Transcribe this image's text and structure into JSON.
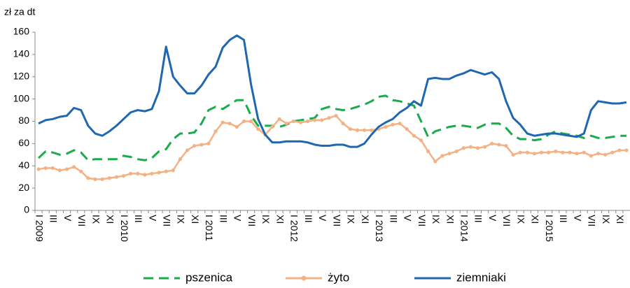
{
  "chart_data": {
    "type": "line",
    "ylabel": "zł za dt",
    "categories": [
      "I 2009",
      null,
      "III",
      null,
      "V",
      null,
      "VII",
      null,
      "IX",
      null,
      "XI",
      null,
      "I 2010",
      null,
      "III",
      null,
      "V",
      null,
      "VII",
      null,
      "IX",
      null,
      "XI",
      null,
      "I 2011",
      null,
      "III",
      null,
      "V",
      null,
      "VII",
      null,
      "IX",
      null,
      "XI",
      null,
      "I 2012",
      null,
      "III",
      null,
      "V",
      null,
      "VII",
      null,
      "IX",
      null,
      "XI",
      null,
      "I 2013",
      null,
      "III",
      null,
      "V",
      null,
      "VII",
      null,
      "IX",
      null,
      "XI",
      null,
      "I 2014",
      null,
      "III",
      null,
      "V",
      null,
      "VII",
      null,
      "IX",
      null,
      "XI",
      null,
      "I 2015",
      null,
      "III",
      null,
      "V",
      null,
      "VII",
      null,
      "IX",
      null,
      "XI",
      null
    ],
    "series": [
      {
        "name": "pszenica",
        "color": "#1aab4b",
        "style": "dashed",
        "values": [
          47,
          53,
          52,
          50,
          51,
          54,
          52,
          45,
          46,
          46,
          46,
          46,
          49,
          48,
          46,
          45,
          47,
          53,
          55,
          64,
          69,
          69,
          70,
          78,
          90,
          93,
          91,
          95,
          99,
          99,
          85,
          76,
          76,
          76,
          75,
          77,
          80,
          81,
          82,
          83,
          91,
          93,
          91,
          90,
          91,
          93,
          95,
          98,
          102,
          103,
          99,
          98,
          96,
          94,
          80,
          66,
          71,
          73,
          75,
          76,
          76,
          75,
          74,
          77,
          78,
          78,
          74,
          67,
          64,
          64,
          63,
          64,
          68,
          71,
          69,
          68,
          67,
          65,
          67,
          65,
          65,
          66,
          67,
          67
        ]
      },
      {
        "name": "żyto",
        "color": "#f4b183",
        "style": "markers",
        "values": [
          37,
          38,
          38,
          36,
          37,
          39,
          35,
          29,
          28,
          28,
          29,
          30,
          31,
          33,
          33,
          32,
          33,
          34,
          35,
          36,
          46,
          54,
          58,
          59,
          60,
          71,
          79,
          78,
          75,
          80,
          80,
          73,
          68,
          75,
          82,
          78,
          80,
          79,
          80,
          81,
          81,
          83,
          85,
          78,
          73,
          72,
          72,
          72,
          73,
          75,
          77,
          78,
          73,
          67,
          63,
          53,
          44,
          49,
          51,
          53,
          56,
          57,
          56,
          57,
          60,
          59,
          58,
          50,
          52,
          52,
          51,
          52,
          52,
          53,
          52,
          52,
          51,
          52,
          49,
          51,
          50,
          52,
          54,
          54
        ]
      },
      {
        "name": "ziemniaki",
        "color": "#1f67b1",
        "style": "solid",
        "values": [
          78,
          81,
          82,
          84,
          85,
          92,
          90,
          76,
          69,
          67,
          71,
          76,
          82,
          88,
          90,
          89,
          91,
          107,
          147,
          120,
          112,
          105,
          105,
          112,
          122,
          129,
          146,
          153,
          157,
          153,
          113,
          82,
          68,
          61,
          61,
          62,
          62,
          62,
          61,
          59,
          58,
          58,
          59,
          59,
          57,
          57,
          60,
          68,
          75,
          79,
          82,
          88,
          92,
          98,
          94,
          118,
          119,
          118,
          118,
          121,
          123,
          126,
          124,
          122,
          124,
          118,
          98,
          83,
          77,
          69,
          67,
          68,
          69,
          69,
          68,
          67,
          66,
          69,
          90,
          98,
          97,
          96,
          96,
          97
        ]
      }
    ],
    "ylim": [
      0,
      160
    ],
    "yticks": [
      0,
      20,
      40,
      60,
      80,
      100,
      120,
      140,
      160
    ],
    "grid": false,
    "legend": "bottom"
  }
}
